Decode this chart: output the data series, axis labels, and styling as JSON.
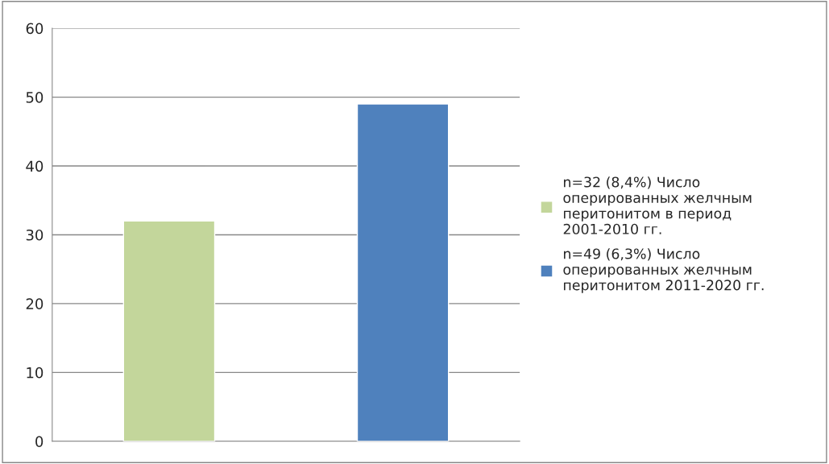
{
  "chart_data": {
    "type": "bar",
    "categories": [
      null,
      null
    ],
    "series": [
      {
        "name": "n=32 (8,4%) Число оперированных желчным перитонитом в период 2001-2010 гг.",
        "color": "#c3d69b",
        "values": [
          32,
          null
        ]
      },
      {
        "name": "n=49 (6,3%) Число оперированных желчным перитонитом 2011-2020 гг.",
        "color": "#4f81bd",
        "values": [
          null,
          49
        ]
      }
    ],
    "ylim": [
      0,
      60
    ],
    "yticks": [
      0,
      10,
      20,
      30,
      40,
      50,
      60
    ],
    "grid": "y",
    "legend": "right"
  }
}
